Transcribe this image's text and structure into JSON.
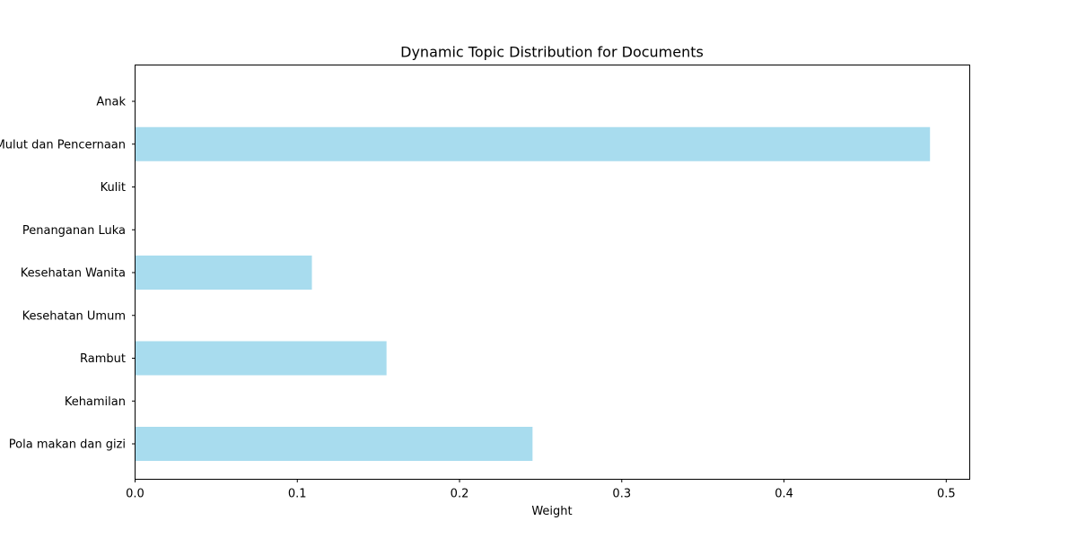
{
  "chart_data": {
    "type": "bar",
    "orientation": "horizontal",
    "title": "Dynamic Topic Distribution for Documents",
    "xlabel": "Weight",
    "ylabel": "",
    "xlim": [
      0,
      0.5145
    ],
    "xticks": [
      "0.0",
      "0.1",
      "0.2",
      "0.3",
      "0.4",
      "0.5"
    ],
    "xtick_values": [
      0,
      0.1,
      0.2,
      0.3,
      0.4,
      0.5
    ],
    "grid": false,
    "bar_color": "#a8dcee",
    "categories": [
      "Anak",
      "Mulut dan Pencernaan",
      "Kulit",
      "Penanganan Luka",
      "Kesehatan Wanita",
      "Kesehatan Umum",
      "Rambut",
      "Kehamilan",
      "Pola makan dan gizi"
    ],
    "values": [
      0,
      0.49,
      0,
      0,
      0.109,
      0,
      0.155,
      0,
      0.245
    ]
  }
}
